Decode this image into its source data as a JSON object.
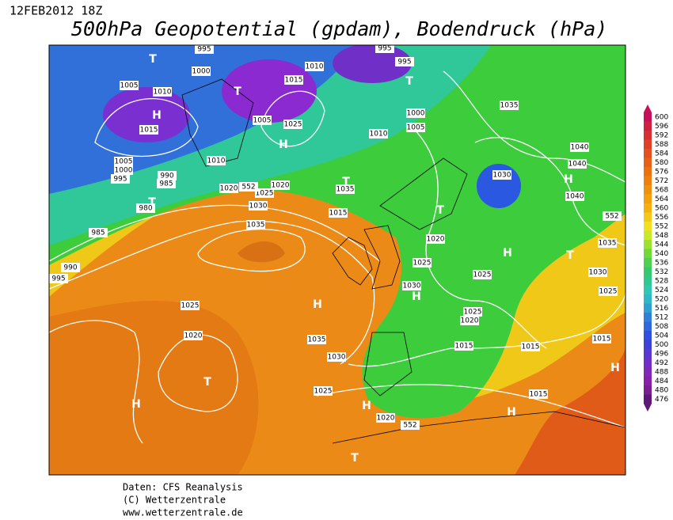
{
  "header": {
    "date": "12FEB2012 18Z",
    "title": "500hPa Geopotential (gpdam), Bodendruck (hPa)"
  },
  "colorbar": {
    "ticks": [
      600,
      596,
      592,
      588,
      584,
      580,
      576,
      572,
      568,
      564,
      560,
      556,
      552,
      548,
      544,
      540,
      536,
      532,
      528,
      524,
      520,
      516,
      512,
      508,
      504,
      500,
      496,
      492,
      488,
      484,
      480,
      476
    ],
    "colors": [
      "#c8105a",
      "#d02040",
      "#d83030",
      "#e04028",
      "#e45020",
      "#e86018",
      "#ec7010",
      "#ee8010",
      "#f09010",
      "#f2a010",
      "#f4b010",
      "#f4c818",
      "#f0e020",
      "#c8e828",
      "#9ce030",
      "#70d838",
      "#50d050",
      "#38c870",
      "#30c890",
      "#30c8b0",
      "#30b8c8",
      "#30a0d0",
      "#3080d8",
      "#3068e0",
      "#3050e0",
      "#4040d8",
      "#5838d0",
      "#7030c8",
      "#8028b8",
      "#8820a8",
      "#782090",
      "#601878"
    ]
  },
  "map_labels": [
    "T",
    "995",
    "1000",
    "T",
    "1005",
    "1010",
    "H",
    "1015",
    "1010",
    "1015",
    "995",
    "995",
    "T",
    "1000",
    "1005",
    "1025",
    "H",
    "1010",
    "1005",
    "1035",
    "1040",
    "1040",
    "1040",
    "1030",
    "H",
    "1010",
    "1005",
    "1000",
    "995",
    "990",
    "985",
    "T",
    "980",
    "985",
    "1020",
    "1025",
    "1020",
    "1030",
    "T",
    "1035",
    "1015",
    "T",
    "1035",
    "1020",
    "1025",
    "H",
    "1025",
    "T",
    "1035",
    "1030",
    "1025",
    "H",
    "1030",
    "H",
    "1025",
    "1025",
    "1020",
    "1020",
    "1035",
    "1015",
    "1015",
    "1015",
    "H",
    "1030",
    "T",
    "H",
    "1025",
    "H",
    "1020",
    "1015",
    "H",
    "T",
    "990",
    "995",
    "552",
    "552",
    "552"
  ],
  "footer": {
    "lines": [
      "Daten: CFS Reanalysis",
      "(C) Wetterzentrale",
      "www.wetterzentrale.de"
    ]
  }
}
